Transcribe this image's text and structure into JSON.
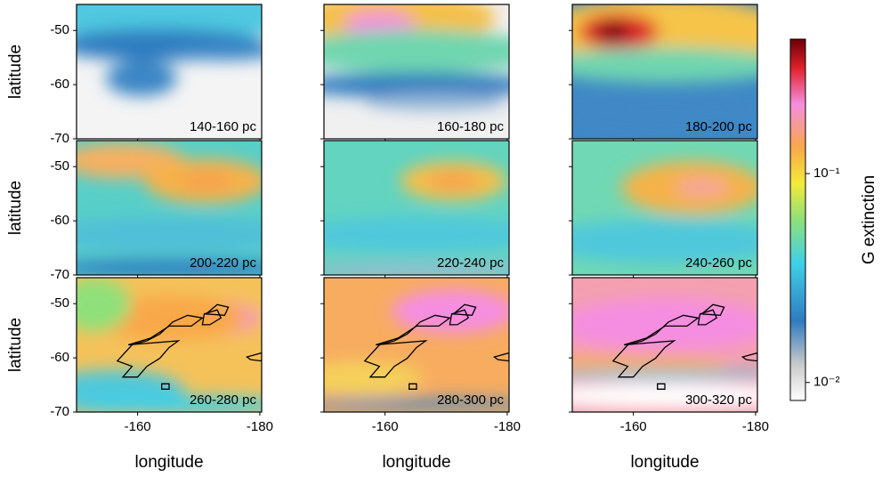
{
  "chart_data": {
    "type": "heatmap",
    "panels": [
      {
        "label": "140-160 pc"
      },
      {
        "label": "160-180 pc"
      },
      {
        "label": "180-200 pc"
      },
      {
        "label": "200-220 pc"
      },
      {
        "label": "220-240 pc"
      },
      {
        "label": "240-260 pc"
      },
      {
        "label": "260-280 pc"
      },
      {
        "label": "280-300 pc"
      },
      {
        "label": "300-320 pc"
      }
    ],
    "xlabel": "longitude",
    "ylabel": "latitude",
    "xlim": [
      -150,
      -180.3
    ],
    "xticks": [
      -160,
      -180
    ],
    "ylim": [
      -45.2,
      -70
    ],
    "yticks": [
      -50,
      -60,
      -70
    ],
    "colorbar": {
      "label": "G extinction",
      "log": true,
      "clim": [
        0.0082,
        0.44
      ],
      "ticks": [
        {
          "value": 0.1,
          "label": "10⁻¹"
        },
        {
          "value": 0.01,
          "label": "10⁻²"
        }
      ]
    }
  }
}
